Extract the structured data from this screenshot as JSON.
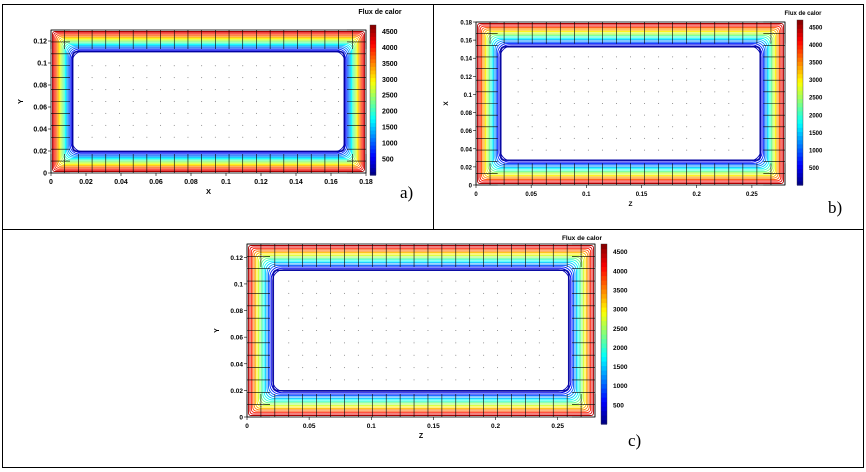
{
  "chart_data": [
    {
      "type": "contour",
      "panel_label": "a)",
      "title": "Flux de calor",
      "xlabel": "X",
      "ylabel": "Y",
      "xlim": [
        0,
        0.18
      ],
      "ylim": [
        0,
        0.13
      ],
      "x_ticks": [
        "0",
        "0.02",
        "0.04",
        "0.06",
        "0.08",
        "0.1",
        "0.12",
        "0.14",
        "0.16",
        "0.18"
      ],
      "y_ticks": [
        "0",
        "0.02",
        "0.04",
        "0.06",
        "0.08",
        "0.1",
        "0.12"
      ],
      "colorbar": {
        "min": 0,
        "max": 4700,
        "ticks": [
          "500",
          "1000",
          "1500",
          "2000",
          "2500",
          "3000",
          "3500",
          "4000",
          "4500"
        ]
      },
      "contour_levels": [
        4500,
        4250,
        4000,
        3750,
        3500,
        3250,
        3000,
        2750,
        2500,
        2250,
        2000,
        1750,
        1500,
        1250,
        1000,
        750,
        500,
        250
      ]
    },
    {
      "type": "contour",
      "panel_label": "b)",
      "title": "Flux de calor",
      "xlabel": "Z",
      "ylabel": "X",
      "xlim": [
        0,
        0.28
      ],
      "ylim": [
        0,
        0.18
      ],
      "x_ticks": [
        "0",
        "0.05",
        "0.1",
        "0.15",
        "0.2",
        "0.25"
      ],
      "y_ticks": [
        "0",
        "0.02",
        "0.04",
        "0.06",
        "0.08",
        "0.1",
        "0.12",
        "0.14",
        "0.16",
        "0.18"
      ],
      "colorbar": {
        "min": 0,
        "max": 4700,
        "ticks": [
          "500",
          "1000",
          "1500",
          "2000",
          "2500",
          "3000",
          "3500",
          "4000",
          "4500"
        ]
      },
      "contour_levels": [
        4500,
        4250,
        4000,
        3750,
        3500,
        3250,
        3000,
        2750,
        2500,
        2250,
        2000,
        1750,
        1500,
        1250,
        1000,
        750,
        500,
        250
      ]
    },
    {
      "type": "contour",
      "panel_label": "c)",
      "title": "Flux de calor",
      "xlabel": "Z",
      "ylabel": "Y",
      "xlim": [
        0,
        0.28
      ],
      "ylim": [
        0,
        0.13
      ],
      "x_ticks": [
        "0",
        "0.05",
        "0.1",
        "0.15",
        "0.2",
        "0.25"
      ],
      "y_ticks": [
        "0",
        "0.02",
        "0.04",
        "0.06",
        "0.08",
        "0.1",
        "0.12"
      ],
      "colorbar": {
        "min": 0,
        "max": 4700,
        "ticks": [
          "500",
          "1000",
          "1500",
          "2000",
          "2500",
          "3000",
          "3500",
          "4000",
          "4500"
        ]
      },
      "contour_levels": [
        4500,
        4250,
        4000,
        3750,
        3500,
        3250,
        3000,
        2750,
        2500,
        2250,
        2000,
        1750,
        1500,
        1250,
        1000,
        750,
        500,
        250
      ]
    }
  ]
}
